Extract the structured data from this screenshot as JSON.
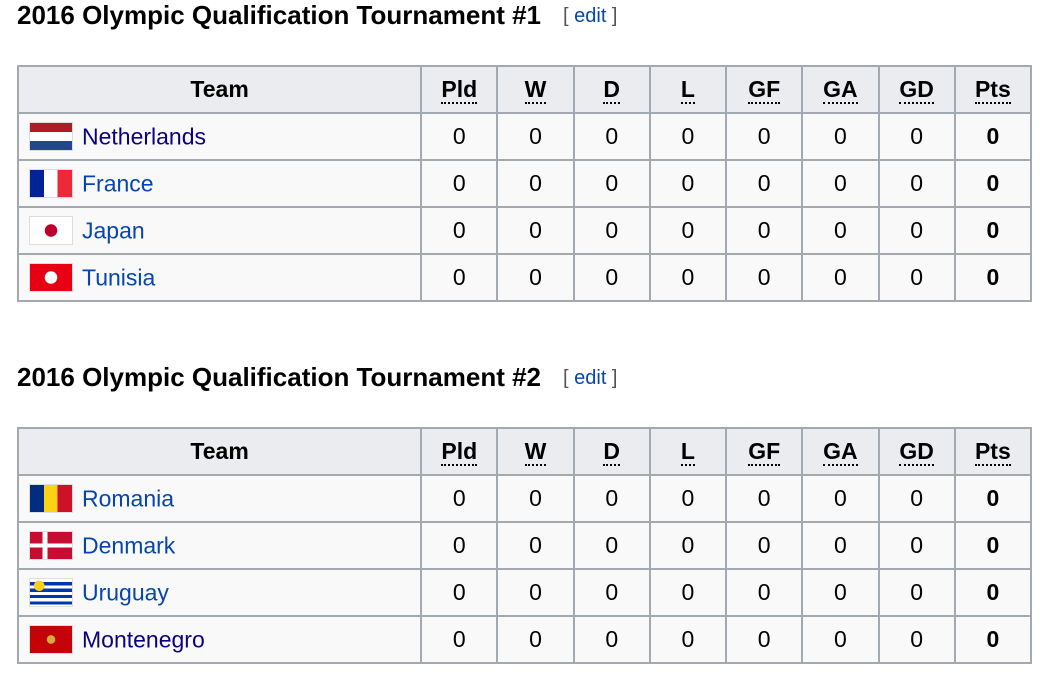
{
  "edit_label": "edit",
  "columns": [
    "Team",
    "Pld",
    "W",
    "D",
    "L",
    "GF",
    "GA",
    "GD",
    "Pts"
  ],
  "link_colors": {
    "link": "#0645ad",
    "visited": "#0b0080"
  },
  "sections": [
    {
      "title": "2016 Olympic Qualification Tournament #1",
      "rows": [
        {
          "team": "Netherlands",
          "flag": "netherlands-flag-icon",
          "visited": true,
          "stats": [
            0,
            0,
            0,
            0,
            0,
            0,
            0,
            0
          ]
        },
        {
          "team": "France",
          "flag": "france-flag-icon",
          "visited": false,
          "stats": [
            0,
            0,
            0,
            0,
            0,
            0,
            0,
            0
          ]
        },
        {
          "team": "Japan",
          "flag": "japan-flag-icon",
          "visited": false,
          "stats": [
            0,
            0,
            0,
            0,
            0,
            0,
            0,
            0
          ]
        },
        {
          "team": "Tunisia",
          "flag": "tunisia-flag-icon",
          "visited": false,
          "stats": [
            0,
            0,
            0,
            0,
            0,
            0,
            0,
            0
          ]
        }
      ]
    },
    {
      "title": "2016 Olympic Qualification Tournament #2",
      "rows": [
        {
          "team": "Romania",
          "flag": "romania-flag-icon",
          "visited": false,
          "stats": [
            0,
            0,
            0,
            0,
            0,
            0,
            0,
            0
          ]
        },
        {
          "team": "Denmark",
          "flag": "denmark-flag-icon",
          "visited": false,
          "stats": [
            0,
            0,
            0,
            0,
            0,
            0,
            0,
            0
          ]
        },
        {
          "team": "Uruguay",
          "flag": "uruguay-flag-icon",
          "visited": false,
          "stats": [
            0,
            0,
            0,
            0,
            0,
            0,
            0,
            0
          ]
        },
        {
          "team": "Montenegro",
          "flag": "montenegro-flag-icon",
          "visited": true,
          "stats": [
            0,
            0,
            0,
            0,
            0,
            0,
            0,
            0
          ]
        }
      ]
    }
  ]
}
